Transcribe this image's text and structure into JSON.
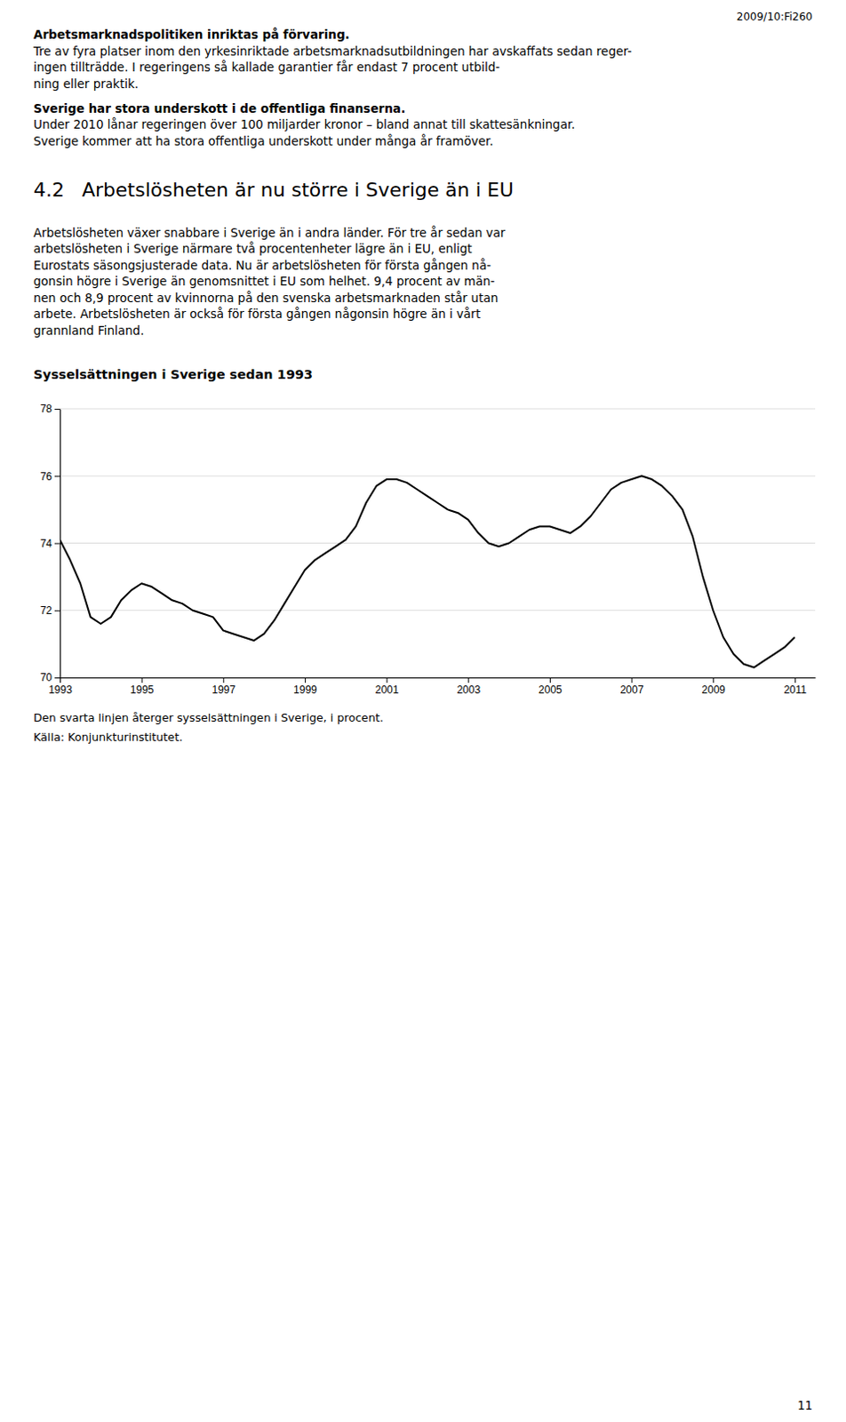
{
  "page_ref": "2009/10:Fi260",
  "paragraphs": [
    {
      "bold": "Arbetsmarknadspolitiken inriktas på förvaring.",
      "lines": [
        "Tre av fyra platser inom den yrkesinriktade arbetsmarknadsutbildningen har avskaffats sedan reger-",
        "ingen tillträdde. I regeringens så kallade garantier får endast 7 procent utbild-",
        "ning eller praktik."
      ]
    },
    {
      "bold": "Sverige har stora underskott i de offentliga finanserna.",
      "lines": [
        "Under 2010 lånar regeringen över 100 miljarder kronor – bland annat till skattesänkningar.",
        "Sverige kommer att ha stora offentliga underskott under många år framöver."
      ]
    }
  ],
  "section_number": "4.2",
  "section_title": "Arbetslösheten är nu större i Sverige än i EU",
  "body_lines": [
    "Arbetslösheten växer snabbare i Sverige än i andra länder. För tre år sedan var",
    "arbetslösheten i Sverige närmare två procentenheter lägre än i EU, enligt",
    "Eurostats säsongsjusterade data. Nu är arbetslösheten för första gången nå-",
    "gonsin högre i Sverige än genomsnittet i EU som helhet. 9,4 procent av män-",
    "nen och 8,9 procent av kvinnorna på den svenska arbetsmarknaden står utan",
    "arbete. Arbetslösheten är också för första gången någonsin högre än i vårt",
    "grannland Finland."
  ],
  "chart_data": {
    "type": "line",
    "title": "Sysselsättningen i Sverige sedan 1993",
    "color": "#000000",
    "x": [
      1993.0,
      1993.25,
      1993.5,
      1993.75,
      1994.0,
      1994.25,
      1994.5,
      1994.75,
      1995.0,
      1995.25,
      1995.5,
      1995.75,
      1996.0,
      1996.25,
      1996.5,
      1996.75,
      1997.0,
      1997.25,
      1997.5,
      1997.75,
      1998.0,
      1998.25,
      1998.5,
      1998.75,
      1999.0,
      1999.25,
      1999.5,
      1999.75,
      2000.0,
      2000.25,
      2000.5,
      2000.75,
      2001.0,
      2001.25,
      2001.5,
      2001.75,
      2002.0,
      2002.25,
      2002.5,
      2002.75,
      2003.0,
      2003.25,
      2003.5,
      2003.75,
      2004.0,
      2004.25,
      2004.5,
      2004.75,
      2005.0,
      2005.25,
      2005.5,
      2005.75,
      2006.0,
      2006.25,
      2006.5,
      2006.75,
      2007.0,
      2007.25,
      2007.5,
      2007.75,
      2008.0,
      2008.25,
      2008.5,
      2008.75,
      2009.0,
      2009.25,
      2009.5,
      2009.75,
      2010.0,
      2010.25,
      2010.5,
      2010.75,
      2011.0
    ],
    "values": [
      74.1,
      73.5,
      72.8,
      71.8,
      71.6,
      71.8,
      72.3,
      72.6,
      72.8,
      72.7,
      72.5,
      72.3,
      72.2,
      72.0,
      71.9,
      71.8,
      71.4,
      71.3,
      71.2,
      71.1,
      71.3,
      71.7,
      72.2,
      72.7,
      73.2,
      73.5,
      73.7,
      73.9,
      74.1,
      74.5,
      75.2,
      75.7,
      75.9,
      75.9,
      75.8,
      75.6,
      75.4,
      75.2,
      75.0,
      74.9,
      74.7,
      74.3,
      74.0,
      73.9,
      74.0,
      74.2,
      74.4,
      74.5,
      74.5,
      74.4,
      74.3,
      74.5,
      74.8,
      75.2,
      75.6,
      75.8,
      75.9,
      76.0,
      75.9,
      75.7,
      75.4,
      75.0,
      74.2,
      73.0,
      72.0,
      71.2,
      70.7,
      70.4,
      70.3,
      70.5,
      70.7,
      70.9,
      71.2
    ],
    "xlim": [
      1993,
      2011.5
    ],
    "xticks": [
      1993,
      1995,
      1997,
      1999,
      2001,
      2003,
      2005,
      2007,
      2009,
      2011
    ],
    "ylim": [
      70,
      78
    ],
    "yticks": [
      70,
      72,
      74,
      76,
      78
    ],
    "grid": true
  },
  "chart_caption": "Den svarta linjen återger sysselsättningen i Sverige, i procent.",
  "chart_source": "Källa: Konjunkturinstitutet.",
  "page_number": "11"
}
